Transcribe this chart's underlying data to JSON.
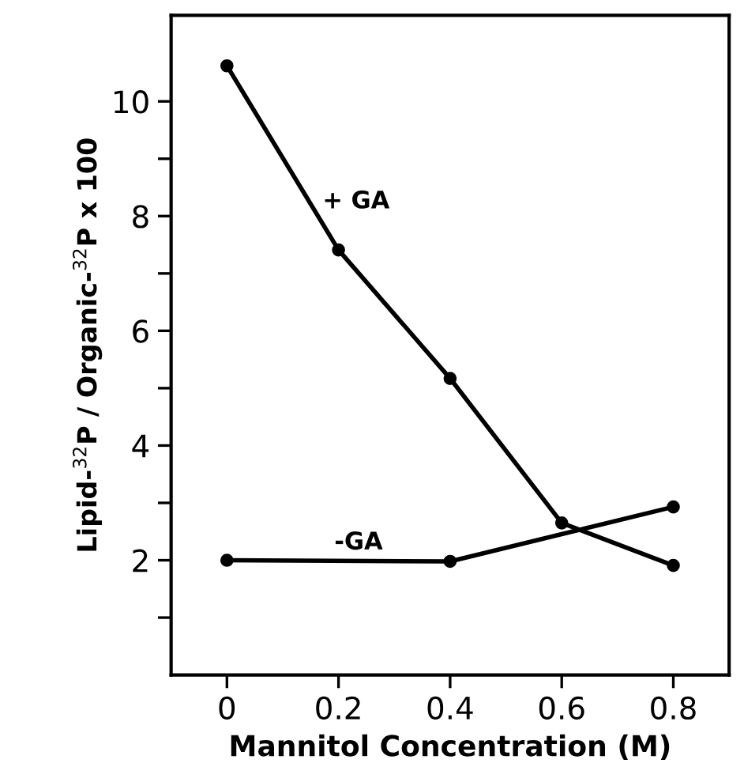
{
  "chart_data": {
    "type": "line",
    "xlabel": "Mannitol Concentration (M)",
    "ylabel": "Lipid-$^{32}$P / Organic-$^{32}$P x 100",
    "series": [
      {
        "name": "+ GA",
        "color": "#000000",
        "x": [
          0,
          0.2,
          0.4,
          0.6,
          0.8
        ],
        "values": [
          10.62,
          7.41,
          5.17,
          2.65,
          1.91
        ]
      },
      {
        "name": "-GA",
        "color": "#000000",
        "x": [
          0,
          0.4,
          0.8
        ],
        "values": [
          2.0,
          1.98,
          2.93
        ]
      }
    ],
    "xlim": [
      -0.1,
      0.9
    ],
    "xticks": [
      0,
      0.2,
      0.4,
      0.6,
      0.8
    ],
    "ylim": [
      0,
      11.5
    ],
    "yticks": [
      {
        "value": 1,
        "label": null
      },
      2,
      {
        "value": 3,
        "label": null
      },
      4,
      {
        "value": 5,
        "label": null
      },
      6,
      {
        "value": 7,
        "label": null
      },
      8,
      {
        "value": 9,
        "label": null
      },
      10
    ],
    "marker": "circle",
    "line_style": "solid",
    "grid": false,
    "legend": false
  }
}
